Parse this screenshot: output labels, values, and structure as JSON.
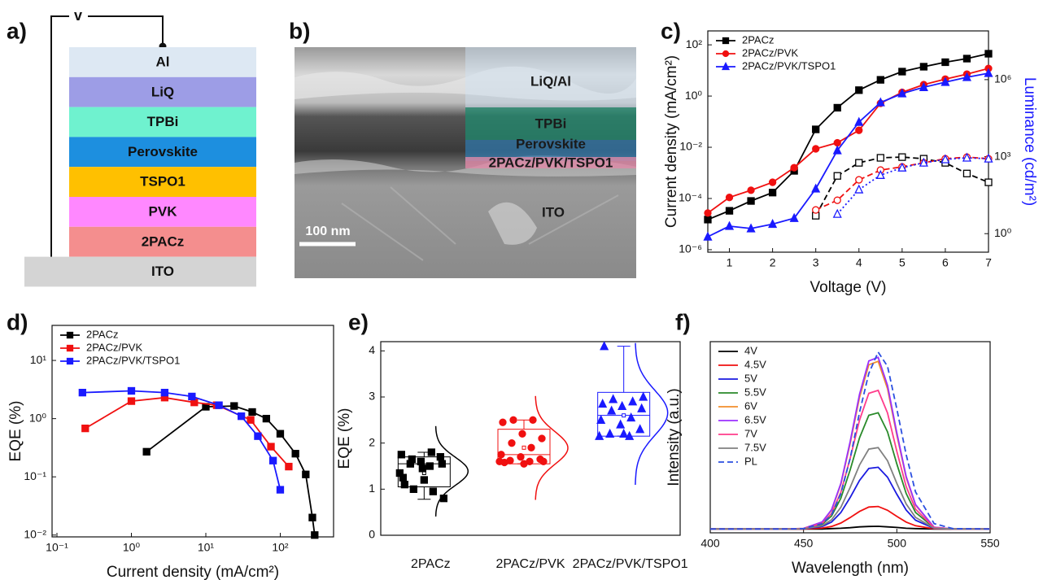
{
  "panel_labels": [
    "a)",
    "b)",
    "c)",
    "d)",
    "e)",
    "f)"
  ],
  "device_stack": {
    "voltage_label": "v",
    "layers": [
      "Al",
      "LiQ",
      "TPBi",
      "Perovskite",
      "TSPO1",
      "PVK",
      "2PACz",
      "ITO"
    ],
    "colors": [
      "#dde8f3",
      "#9d9de6",
      "#6ff2cf",
      "#1d8fdf",
      "#ffc000",
      "#ff88ff",
      "#f48e8e",
      "#d4d4d4"
    ]
  },
  "micrograph": {
    "labels": [
      "LiQ/Al",
      "TPBi",
      "Perovskite",
      "2PACz/PVK/TSPO1",
      "ITO"
    ],
    "scale_bar": "100 nm"
  },
  "chart_data": [
    {
      "type": "line",
      "xlabel": "Voltage (V)",
      "ylabel": "Current density (mA/cm²)",
      "y2label": "Luminance (cd/m²)",
      "y2color": "#1a1aff",
      "x": [
        0.5,
        1,
        1.5,
        2,
        2.5,
        3,
        3.5,
        4,
        4.5,
        5,
        5.5,
        6,
        6.5,
        7
      ],
      "xlim": [
        0.5,
        7
      ],
      "xticks": [
        1,
        2,
        3,
        4,
        5,
        6,
        7
      ],
      "yscale": "log",
      "ylim": [
        8e-07,
        350
      ],
      "yticks": [
        {
          "value": 1e-06,
          "label": "10⁻⁶"
        },
        {
          "value": 0.0001,
          "label": "10⁻⁴"
        },
        {
          "value": 0.01,
          "label": "10⁻²"
        },
        {
          "value": 1,
          "label": "10⁰"
        },
        {
          "value": 100,
          "label": "10²"
        }
      ],
      "y2scale": "log",
      "y2lim": [
        0.19,
        79000000
      ],
      "y2ticks": [
        {
          "value": 1,
          "label": "10⁰"
        },
        {
          "value": 1000,
          "label": "10³"
        },
        {
          "value": 1000000,
          "label": "10⁶"
        }
      ],
      "legend": "upper-left",
      "series": [
        {
          "name": "2PACz",
          "color": "#000000",
          "marker": "square",
          "filled": true,
          "line_style": "solid",
          "values": [
            1.5e-05,
            3.3e-05,
            8e-05,
            0.00017,
            0.0012,
            0.05,
            0.35,
            1.7,
            4.3,
            9,
            14,
            21,
            29,
            45
          ]
        },
        {
          "name": "2PACz/PVK",
          "color": "#f01010",
          "marker": "circle",
          "filled": true,
          "line_style": "solid",
          "values": [
            2.7e-05,
            0.00011,
            0.00021,
            0.00043,
            0.0016,
            0.0087,
            0.015,
            0.046,
            0.52,
            1.4,
            2.8,
            4.6,
            7.2,
            12
          ]
        },
        {
          "name": "2PACz/PVK/TSPO1",
          "color": "#1a1aff",
          "marker": "triangle",
          "filled": true,
          "line_style": "solid",
          "values": [
            3.2e-06,
            8.3e-06,
            6.7e-06,
            1e-05,
            1.7e-05,
            0.00024,
            0.0075,
            0.096,
            0.56,
            1.25,
            2.2,
            3.5,
            5.4,
            7.8
          ]
        },
        {
          "color": "#000000",
          "marker": "square",
          "filled": false,
          "line_style": "dashed",
          "axis": "y2",
          "values": [
            null,
            null,
            null,
            null,
            null,
            5,
            178,
            575,
            900,
            960,
            830,
            575,
            220,
            100
          ]
        },
        {
          "color": "#f01010",
          "marker": "circle",
          "filled": false,
          "line_style": "dashed",
          "axis": "y2",
          "values": [
            null,
            null,
            null,
            null,
            null,
            8.4,
            20,
            125,
            300,
            400,
            575,
            830,
            960,
            830
          ]
        },
        {
          "color": "#1a1aff",
          "marker": "triangle",
          "filled": false,
          "line_style": "dotted",
          "axis": "y2",
          "values": [
            null,
            null,
            null,
            null,
            null,
            null,
            5.8,
            52,
            190,
            370,
            575,
            780,
            900,
            830
          ]
        }
      ]
    },
    {
      "type": "line",
      "xlabel": "Current density (mA/cm²)",
      "ylabel": "EQE (%)",
      "xscale": "log",
      "xlim": [
        0.086,
        520
      ],
      "xticks": [
        {
          "value": 0.1,
          "label": "10⁻¹"
        },
        {
          "value": 1,
          "label": "10⁰"
        },
        {
          "value": 10,
          "label": "10¹"
        },
        {
          "value": 100,
          "label": "10²"
        }
      ],
      "yscale": "log",
      "ylim": [
        0.0093,
        40
      ],
      "yticks": [
        {
          "value": 0.01,
          "label": "10⁻²"
        },
        {
          "value": 0.1,
          "label": "10⁻¹"
        },
        {
          "value": 1,
          "label": "10⁰"
        },
        {
          "value": 10,
          "label": "10¹"
        }
      ],
      "legend": "upper-left",
      "series": [
        {
          "name": "2PACz",
          "color": "#000000",
          "marker": "square",
          "filled": true,
          "line_style": "solid",
          "x": [
            1.6,
            10,
            24,
            42,
            65,
            100,
            160,
            220,
            270,
            290
          ],
          "values": [
            0.27,
            1.6,
            1.65,
            1.3,
            1.0,
            0.55,
            0.25,
            0.11,
            0.02,
            0.01
          ]
        },
        {
          "name": "2PACz/PVK",
          "color": "#f01010",
          "marker": "square",
          "filled": true,
          "line_style": "solid",
          "x": [
            0.24,
            1,
            2.8,
            7,
            14,
            40,
            75,
            130
          ],
          "values": [
            0.68,
            2.0,
            2.3,
            1.9,
            1.7,
            0.95,
            0.33,
            0.15
          ]
        },
        {
          "name": "2PACz/PVK/TSPO1",
          "color": "#1a1aff",
          "marker": "square",
          "filled": true,
          "line_style": "solid",
          "x": [
            0.22,
            1,
            2.8,
            6.5,
            15,
            30,
            50,
            80,
            100
          ],
          "values": [
            2.8,
            3.0,
            2.8,
            2.4,
            1.7,
            1.1,
            0.5,
            0.19,
            0.06
          ]
        }
      ]
    },
    {
      "type": "box",
      "ylabel": "EQE (%)",
      "categories": [
        "2PACz",
        "2PACz/PVK",
        "2PACz/PVK/TSPO1"
      ],
      "ylim": [
        0,
        4.2
      ],
      "yticks": [
        0,
        1,
        2,
        3,
        4
      ],
      "series": [
        {
          "color": "#000000",
          "marker": "square",
          "values": [
            1.35,
            1.5,
            1.55,
            1.7,
            1.6,
            1.75,
            1.8,
            1.65,
            1.55,
            1.45,
            1.25,
            0.95,
            1.0,
            0.8,
            1.2,
            1.1
          ],
          "box": {
            "q1": 1.05,
            "median": 1.55,
            "q3": 1.7,
            "low": 0.78,
            "high": 1.8,
            "mean": 1.35
          }
        },
        {
          "color": "#f01010",
          "marker": "circle",
          "values": [
            1.6,
            1.6,
            1.62,
            1.65,
            1.7,
            1.75,
            1.9,
            2.0,
            2.1,
            2.2,
            2.45,
            2.5,
            2.5,
            1.6,
            1.55,
            1.58
          ],
          "box": {
            "q1": 1.55,
            "median": 1.75,
            "q3": 2.3,
            "low": 1.55,
            "high": 2.5,
            "mean": 1.9
          }
        },
        {
          "color": "#1a1aff",
          "marker": "triangle",
          "values": [
            2.15,
            2.15,
            2.2,
            2.3,
            2.4,
            2.5,
            2.55,
            2.7,
            2.75,
            2.8,
            2.85,
            2.9,
            2.95,
            3.0,
            2.2,
            4.1
          ],
          "box": {
            "q1": 2.15,
            "median": 2.6,
            "q3": 3.1,
            "low": 2.15,
            "high": 4.1,
            "mean": 2.6
          }
        }
      ]
    },
    {
      "type": "line",
      "xlabel": "Wavelength (nm)",
      "ylabel": "Intensity (a.u.)",
      "x": [
        400,
        440,
        450,
        460,
        465,
        470,
        475,
        480,
        485,
        490,
        495,
        500,
        505,
        510,
        520,
        530,
        550
      ],
      "xlim": [
        400,
        550
      ],
      "xticks": [
        400,
        450,
        500,
        550
      ],
      "ylim": [
        0,
        1
      ],
      "legend": "upper-left",
      "series": [
        {
          "name": "4V",
          "color": "#000000",
          "line_style": "solid",
          "values": [
            0.02,
            0.02,
            0.02,
            0.02,
            0.022,
            0.024,
            0.027,
            0.031,
            0.033,
            0.034,
            0.031,
            0.028,
            0.024,
            0.022,
            0.02,
            0.02,
            0.02
          ]
        },
        {
          "name": "4.5V",
          "color": "#f01010",
          "line_style": "solid",
          "values": [
            0.02,
            0.02,
            0.02,
            0.025,
            0.033,
            0.051,
            0.08,
            0.112,
            0.135,
            0.138,
            0.118,
            0.086,
            0.056,
            0.037,
            0.021,
            0.02,
            0.02
          ]
        },
        {
          "name": "5V",
          "color": "#1a1ae0",
          "line_style": "solid",
          "values": [
            0.02,
            0.02,
            0.021,
            0.033,
            0.056,
            0.106,
            0.185,
            0.274,
            0.337,
            0.343,
            0.291,
            0.202,
            0.119,
            0.066,
            0.023,
            0.02,
            0.02
          ]
        },
        {
          "name": "5.5V",
          "color": "#2a8a2a",
          "line_style": "solid",
          "values": [
            0.02,
            0.02,
            0.022,
            0.045,
            0.088,
            0.181,
            0.33,
            0.497,
            0.615,
            0.628,
            0.528,
            0.361,
            0.206,
            0.107,
            0.026,
            0.02,
            0.02
          ]
        },
        {
          "name": "6V",
          "color": "#f28e2b",
          "line_style": "solid",
          "values": [
            0.02,
            0.02,
            0.023,
            0.056,
            0.118,
            0.253,
            0.468,
            0.709,
            0.879,
            0.897,
            0.754,
            0.512,
            0.289,
            0.145,
            0.029,
            0.02,
            0.02
          ]
        },
        {
          "name": "6.5V",
          "color": "#9b30ff",
          "line_style": "solid",
          "values": [
            0.02,
            0.02,
            0.023,
            0.057,
            0.121,
            0.258,
            0.478,
            0.725,
            0.899,
            0.918,
            0.771,
            0.524,
            0.295,
            0.148,
            0.029,
            0.02,
            0.02
          ]
        },
        {
          "name": "7V",
          "color": "#ff3d8b",
          "line_style": "solid",
          "values": [
            0.02,
            0.02,
            0.022,
            0.05,
            0.101,
            0.212,
            0.39,
            0.59,
            0.73,
            0.745,
            0.627,
            0.427,
            0.242,
            0.124,
            0.027,
            0.02,
            0.02
          ]
        },
        {
          "name": "7.5V",
          "color": "#808080",
          "line_style": "solid",
          "values": [
            0.02,
            0.02,
            0.021,
            0.037,
            0.068,
            0.133,
            0.238,
            0.355,
            0.438,
            0.446,
            0.377,
            0.259,
            0.151,
            0.081,
            0.024,
            0.02,
            0.02
          ]
        },
        {
          "name": "PL",
          "color": "#2b4fe0",
          "line_style": "dashed",
          "values": [
            0.02,
            0.02,
            0.022,
            0.048,
            0.094,
            0.205,
            0.39,
            0.63,
            0.834,
            0.945,
            0.871,
            0.649,
            0.409,
            0.214,
            0.048,
            0.022,
            0.02
          ]
        }
      ]
    }
  ]
}
